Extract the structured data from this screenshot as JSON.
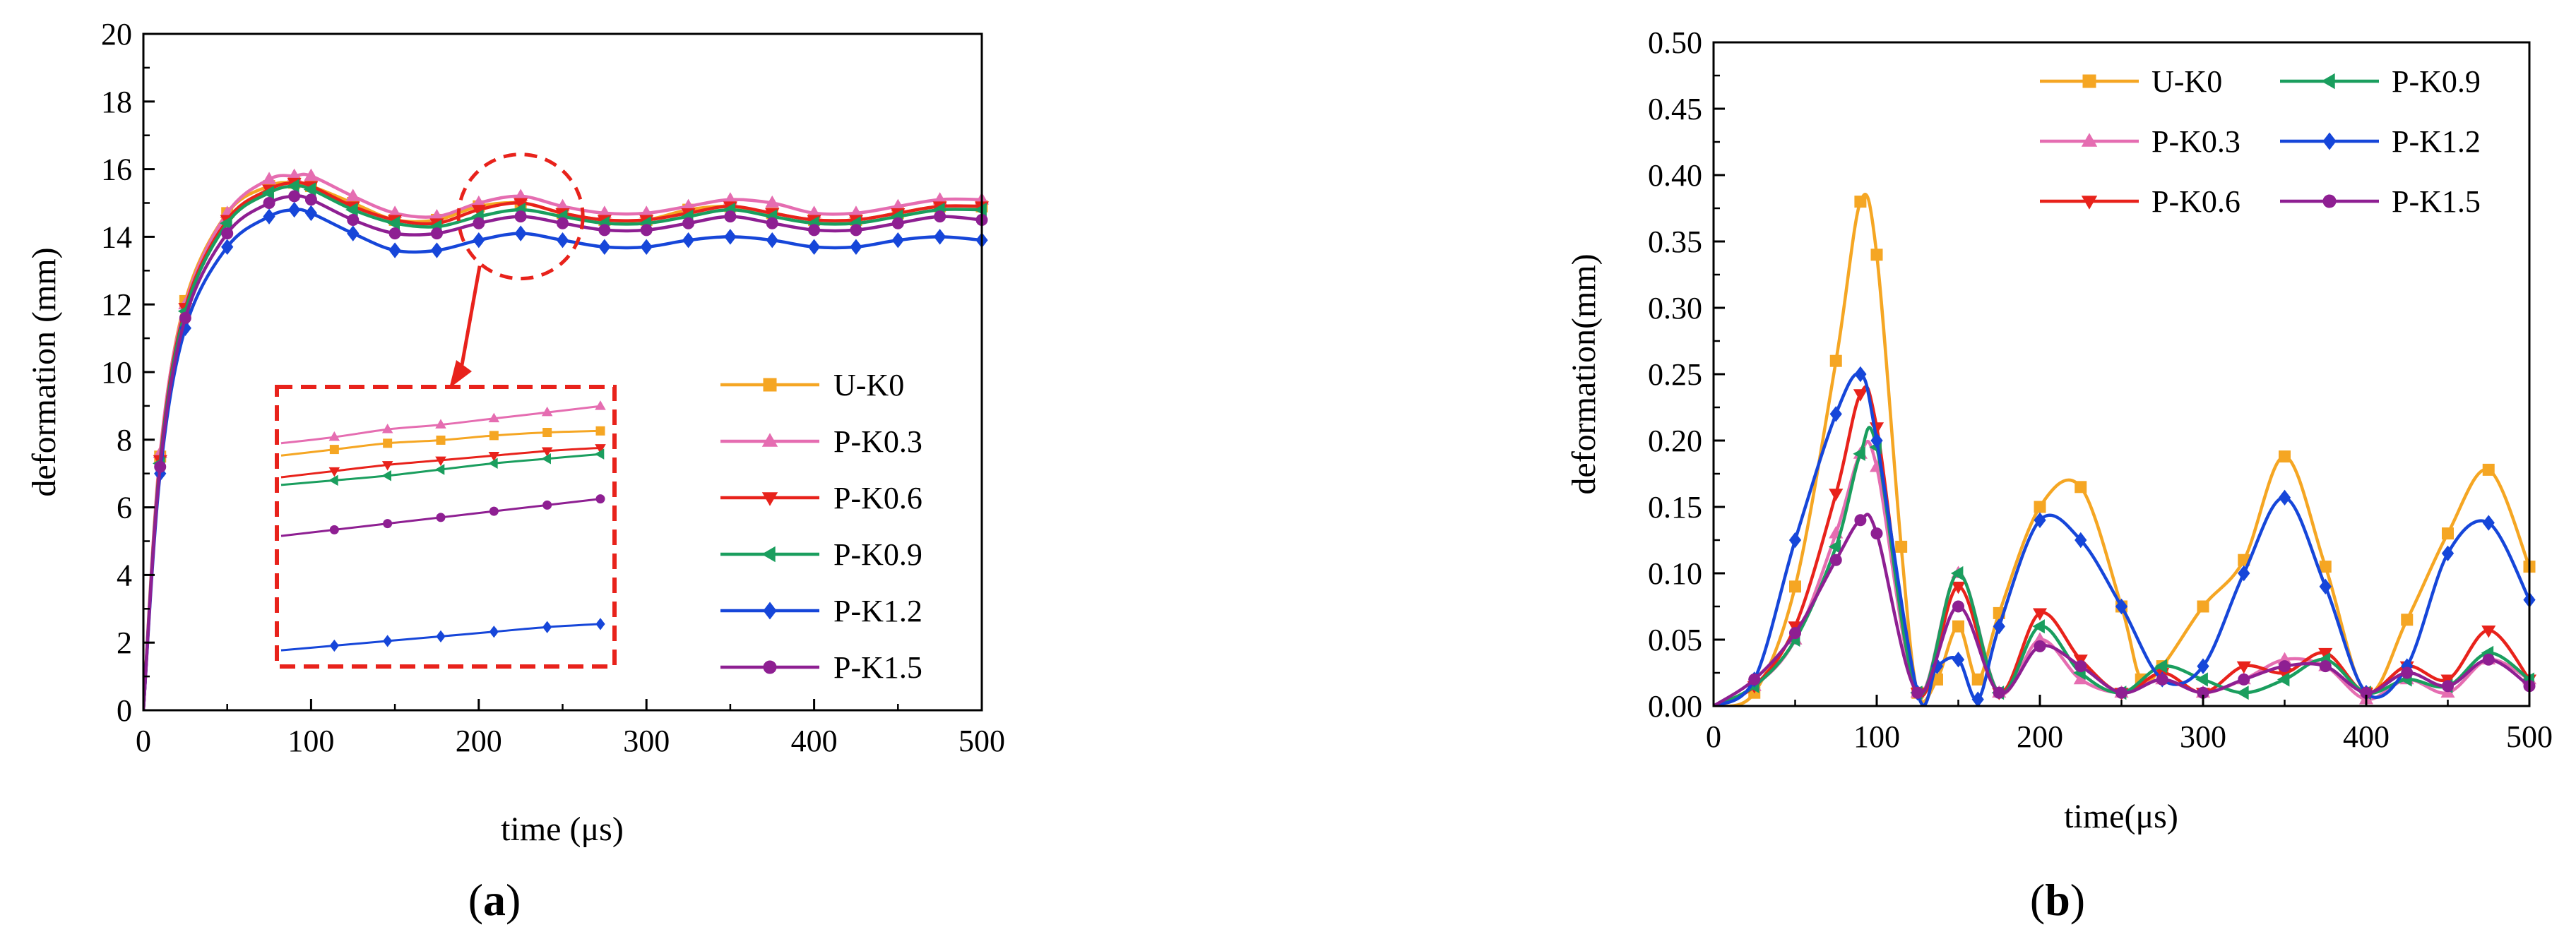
{
  "panels": [
    {
      "label_prefix": "(",
      "label_letter": "a",
      "label_suffix": ")"
    },
    {
      "label_prefix": "(",
      "label_letter": "b",
      "label_suffix": ")"
    }
  ],
  "chart_data": [
    {
      "type": "line",
      "title": "",
      "xlabel": "time (μs)",
      "ylabel": "deformation (mm)",
      "xlim": [
        0,
        500
      ],
      "ylim": [
        0,
        20
      ],
      "xticks": [
        "0",
        "100",
        "200",
        "300",
        "400",
        "500"
      ],
      "yticks": [
        "0",
        "2",
        "4",
        "6",
        "8",
        "10",
        "12",
        "14",
        "16",
        "18",
        "20"
      ],
      "grid": false,
      "legend": "right, 1 column",
      "x": [
        0,
        10,
        25,
        50,
        75,
        90,
        100,
        125,
        150,
        175,
        200,
        225,
        250,
        275,
        300,
        325,
        350,
        375,
        400,
        425,
        450,
        475,
        500
      ],
      "series": [
        {
          "name": "U-K0",
          "color": "#F5A623",
          "marker": "square",
          "values": [
            0,
            7.5,
            12.1,
            14.7,
            15.5,
            15.6,
            15.5,
            15.0,
            14.5,
            14.5,
            14.9,
            15.0,
            14.7,
            14.5,
            14.5,
            14.8,
            14.9,
            14.7,
            14.5,
            14.5,
            14.7,
            14.9,
            14.9
          ]
        },
        {
          "name": "P-K0.3",
          "color": "#E56DB1",
          "marker": "triangle-up",
          "values": [
            0,
            7.6,
            12.0,
            14.7,
            15.7,
            15.8,
            15.8,
            15.2,
            14.7,
            14.6,
            15.0,
            15.2,
            14.9,
            14.7,
            14.7,
            14.9,
            15.1,
            15.0,
            14.7,
            14.7,
            14.9,
            15.1,
            15.1
          ]
        },
        {
          "name": "P-K0.6",
          "color": "#E8221B",
          "marker": "triangle-down",
          "values": [
            0,
            7.4,
            11.9,
            14.5,
            15.4,
            15.6,
            15.5,
            14.9,
            14.5,
            14.4,
            14.8,
            15.0,
            14.7,
            14.5,
            14.5,
            14.7,
            14.9,
            14.7,
            14.5,
            14.5,
            14.7,
            14.9,
            14.9
          ]
        },
        {
          "name": "P-K0.9",
          "color": "#1A9E5E",
          "marker": "triangle-left",
          "values": [
            0,
            7.3,
            11.8,
            14.4,
            15.3,
            15.5,
            15.4,
            14.8,
            14.4,
            14.3,
            14.6,
            14.8,
            14.6,
            14.4,
            14.4,
            14.6,
            14.8,
            14.6,
            14.4,
            14.4,
            14.6,
            14.8,
            14.8
          ]
        },
        {
          "name": "P-K1.2",
          "color": "#1646D9",
          "marker": "diamond",
          "values": [
            0,
            7.0,
            11.3,
            13.7,
            14.6,
            14.8,
            14.7,
            14.1,
            13.6,
            13.6,
            13.9,
            14.1,
            13.9,
            13.7,
            13.7,
            13.9,
            14.0,
            13.9,
            13.7,
            13.7,
            13.9,
            14.0,
            13.9
          ]
        },
        {
          "name": "P-K1.5",
          "color": "#8E1F92",
          "marker": "circle",
          "values": [
            0,
            7.2,
            11.6,
            14.1,
            15.0,
            15.2,
            15.1,
            14.5,
            14.1,
            14.1,
            14.4,
            14.6,
            14.4,
            14.2,
            14.2,
            14.4,
            14.6,
            14.4,
            14.2,
            14.2,
            14.4,
            14.6,
            14.5
          ]
        }
      ],
      "annotation": "dashed circle around x≈225 with arrow to an enlarged inset of the curves",
      "inset": {
        "x": [
          100,
          125,
          150,
          175,
          200,
          225,
          250
        ],
        "ylim": [
          13.55,
          15.25
        ],
        "series_values": {
          "U-K0": [
            14.86,
            14.9,
            14.94,
            14.96,
            14.99,
            15.01,
            15.02
          ],
          "P-K0.3": [
            14.94,
            14.98,
            15.03,
            15.06,
            15.1,
            15.14,
            15.18
          ],
          "P-K0.6": [
            14.72,
            14.76,
            14.8,
            14.83,
            14.86,
            14.89,
            14.91
          ],
          "P-K0.9": [
            14.67,
            14.7,
            14.73,
            14.77,
            14.81,
            14.84,
            14.87
          ],
          "P-K1.2": [
            13.6,
            13.63,
            13.66,
            13.69,
            13.72,
            13.75,
            13.77
          ],
          "P-K1.5": [
            14.34,
            14.38,
            14.42,
            14.46,
            14.5,
            14.54,
            14.58
          ]
        }
      }
    },
    {
      "type": "line",
      "title": "",
      "xlabel": "time(μs)",
      "ylabel": "deformation(mm)",
      "xlim": [
        0,
        500
      ],
      "ylim": [
        0,
        0.5
      ],
      "xticks": [
        "0",
        "100",
        "200",
        "300",
        "400",
        "500"
      ],
      "yticks": [
        "0.00",
        "0.05",
        "0.10",
        "0.15",
        "0.20",
        "0.25",
        "0.30",
        "0.35",
        "0.40",
        "0.45",
        "0.50"
      ],
      "grid": false,
      "legend": "top, 2 columns",
      "series": [
        {
          "name": "U-K0",
          "color": "#F5A623",
          "marker": "square",
          "x": [
            0,
            25,
            50,
            75,
            90,
            100,
            115,
            125,
            137,
            150,
            162,
            175,
            200,
            225,
            250,
            262,
            275,
            300,
            325,
            350,
            375,
            400,
            425,
            450,
            475,
            500
          ],
          "y": [
            0,
            0.01,
            0.09,
            0.26,
            0.38,
            0.34,
            0.12,
            0.01,
            0.02,
            0.06,
            0.02,
            0.07,
            0.15,
            0.165,
            0.075,
            0.02,
            0.03,
            0.075,
            0.11,
            0.188,
            0.105,
            0.01,
            0.065,
            0.13,
            0.178,
            0.105
          ]
        },
        {
          "name": "P-K0.3",
          "color": "#E56DB1",
          "marker": "triangle-up",
          "x": [
            0,
            25,
            50,
            75,
            90,
            100,
            125,
            150,
            175,
            200,
            225,
            250,
            275,
            300,
            325,
            350,
            375,
            400,
            425,
            450,
            475,
            500
          ],
          "y": [
            0,
            0.015,
            0.05,
            0.13,
            0.19,
            0.18,
            0.01,
            0.1,
            0.01,
            0.05,
            0.02,
            0.01,
            0.02,
            0.01,
            0.02,
            0.035,
            0.03,
            0.005,
            0.02,
            0.01,
            0.035,
            0.02
          ]
        },
        {
          "name": "P-K0.6",
          "color": "#E8221B",
          "marker": "triangle-down",
          "x": [
            0,
            25,
            50,
            75,
            90,
            100,
            125,
            150,
            175,
            200,
            225,
            250,
            275,
            300,
            325,
            350,
            375,
            400,
            425,
            450,
            475,
            500
          ],
          "y": [
            0,
            0.015,
            0.06,
            0.16,
            0.235,
            0.21,
            0.01,
            0.09,
            0.01,
            0.07,
            0.035,
            0.01,
            0.025,
            0.01,
            0.03,
            0.025,
            0.04,
            0.01,
            0.03,
            0.02,
            0.057,
            0.02
          ]
        },
        {
          "name": "P-K0.9",
          "color": "#1A9E5E",
          "marker": "triangle-left",
          "x": [
            0,
            25,
            50,
            75,
            90,
            100,
            125,
            150,
            175,
            200,
            225,
            250,
            275,
            300,
            325,
            350,
            375,
            400,
            425,
            450,
            475,
            500
          ],
          "y": [
            0,
            0.015,
            0.05,
            0.12,
            0.19,
            0.195,
            0.01,
            0.1,
            0.01,
            0.06,
            0.025,
            0.01,
            0.03,
            0.02,
            0.01,
            0.02,
            0.035,
            0.01,
            0.02,
            0.015,
            0.04,
            0.02
          ]
        },
        {
          "name": "P-K1.2",
          "color": "#1646D9",
          "marker": "diamond",
          "x": [
            0,
            25,
            50,
            75,
            90,
            100,
            125,
            137,
            150,
            162,
            175,
            200,
            225,
            250,
            275,
            300,
            325,
            350,
            375,
            400,
            425,
            450,
            475,
            500
          ],
          "y": [
            0,
            0.02,
            0.125,
            0.22,
            0.25,
            0.2,
            0.01,
            0.03,
            0.035,
            0.005,
            0.06,
            0.14,
            0.125,
            0.075,
            0.02,
            0.03,
            0.1,
            0.157,
            0.09,
            0.01,
            0.03,
            0.115,
            0.138,
            0.08
          ]
        },
        {
          "name": "P-K1.5",
          "color": "#8E1F92",
          "marker": "circle",
          "x": [
            0,
            25,
            50,
            75,
            90,
            100,
            125,
            150,
            175,
            200,
            225,
            250,
            275,
            300,
            325,
            350,
            375,
            400,
            425,
            450,
            475,
            500
          ],
          "y": [
            0,
            0.02,
            0.055,
            0.11,
            0.14,
            0.13,
            0.01,
            0.075,
            0.01,
            0.045,
            0.03,
            0.01,
            0.02,
            0.01,
            0.02,
            0.03,
            0.03,
            0.01,
            0.025,
            0.015,
            0.035,
            0.015
          ]
        }
      ]
    }
  ]
}
